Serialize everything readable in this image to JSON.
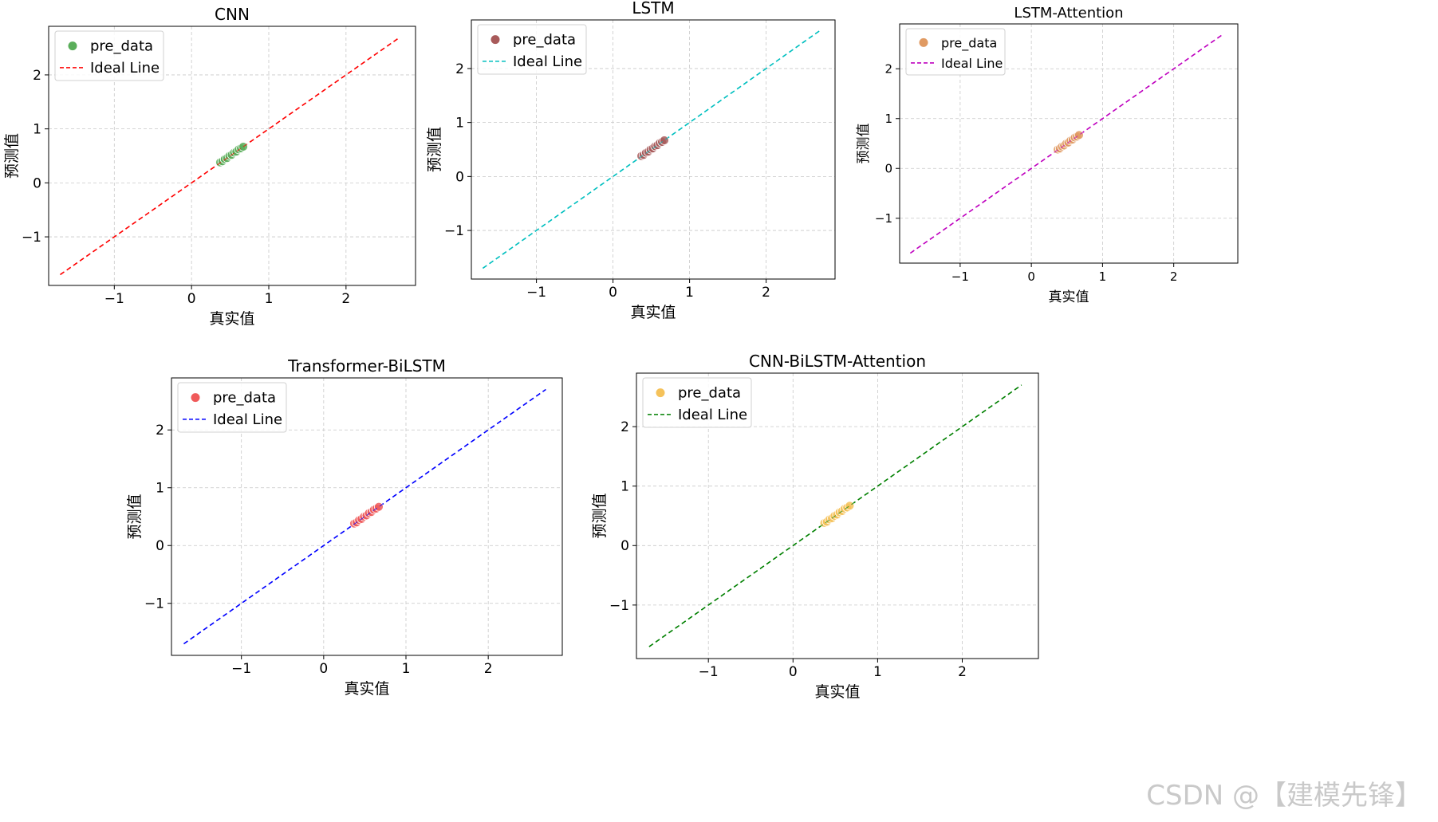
{
  "chart_data": [
    {
      "type": "scatter",
      "title": "CNN",
      "xlabel": "真实值",
      "ylabel": "预测值",
      "xlim": [
        -1.85,
        2.9
      ],
      "ylim": [
        -1.9,
        2.9
      ],
      "xticks": [
        -1,
        0,
        1,
        2
      ],
      "yticks": [
        -1,
        0,
        1,
        2
      ],
      "xtick_labels": [
        "−1",
        "0",
        "1",
        "2"
      ],
      "ytick_labels": [
        "−1",
        "0",
        "1",
        "2"
      ],
      "grid": true,
      "legend_position": "top-left",
      "series": [
        {
          "name": "pre_data",
          "kind": "scatter",
          "color": "#5aae5a",
          "points": [
            [
              0.37,
              0.38
            ],
            [
              0.4,
              0.4
            ],
            [
              0.43,
              0.44
            ],
            [
              0.46,
              0.46
            ],
            [
              0.49,
              0.5
            ],
            [
              0.52,
              0.52
            ],
            [
              0.55,
              0.56
            ],
            [
              0.58,
              0.58
            ],
            [
              0.61,
              0.62
            ],
            [
              0.64,
              0.64
            ],
            [
              0.67,
              0.67
            ]
          ]
        },
        {
          "name": "Ideal Line",
          "kind": "line",
          "style": "dashed",
          "color": "#ff0000",
          "x": [
            -1.7,
            2.7
          ],
          "y": [
            -1.7,
            2.7
          ]
        }
      ]
    },
    {
      "type": "scatter",
      "title": "LSTM",
      "xlabel": "真实值",
      "ylabel": "预测值",
      "xlim": [
        -1.85,
        2.9
      ],
      "ylim": [
        -1.9,
        2.9
      ],
      "xticks": [
        -1,
        0,
        1,
        2
      ],
      "yticks": [
        -1,
        0,
        1,
        2
      ],
      "xtick_labels": [
        "−1",
        "0",
        "1",
        "2"
      ],
      "ytick_labels": [
        "−1",
        "0",
        "1",
        "2"
      ],
      "grid": true,
      "legend_position": "top-left",
      "series": [
        {
          "name": "pre_data",
          "kind": "scatter",
          "color": "#a85a5a",
          "points": [
            [
              0.37,
              0.38
            ],
            [
              0.4,
              0.4
            ],
            [
              0.43,
              0.44
            ],
            [
              0.46,
              0.46
            ],
            [
              0.49,
              0.5
            ],
            [
              0.52,
              0.52
            ],
            [
              0.55,
              0.56
            ],
            [
              0.58,
              0.58
            ],
            [
              0.61,
              0.62
            ],
            [
              0.64,
              0.64
            ],
            [
              0.67,
              0.67
            ]
          ]
        },
        {
          "name": "Ideal Line",
          "kind": "line",
          "style": "dashed",
          "color": "#00bfbf",
          "x": [
            -1.7,
            2.7
          ],
          "y": [
            -1.7,
            2.7
          ]
        }
      ]
    },
    {
      "type": "scatter",
      "title": "LSTM-Attention",
      "xlabel": "真实值",
      "ylabel": "预测值",
      "xlim": [
        -1.85,
        2.9
      ],
      "ylim": [
        -1.9,
        2.9
      ],
      "xticks": [
        -1,
        0,
        1,
        2
      ],
      "yticks": [
        -1,
        0,
        1,
        2
      ],
      "xtick_labels": [
        "−1",
        "0",
        "1",
        "2"
      ],
      "ytick_labels": [
        "−1",
        "0",
        "1",
        "2"
      ],
      "grid": true,
      "legend_position": "top-left",
      "series": [
        {
          "name": "pre_data",
          "kind": "scatter",
          "color": "#e09a62",
          "points": [
            [
              0.37,
              0.38
            ],
            [
              0.4,
              0.4
            ],
            [
              0.43,
              0.44
            ],
            [
              0.46,
              0.46
            ],
            [
              0.49,
              0.5
            ],
            [
              0.52,
              0.52
            ],
            [
              0.55,
              0.56
            ],
            [
              0.58,
              0.58
            ],
            [
              0.61,
              0.62
            ],
            [
              0.64,
              0.64
            ],
            [
              0.67,
              0.67
            ]
          ]
        },
        {
          "name": "Ideal Line",
          "kind": "line",
          "style": "dashed",
          "color": "#bf00bf",
          "x": [
            -1.7,
            2.7
          ],
          "y": [
            -1.7,
            2.7
          ]
        }
      ]
    },
    {
      "type": "scatter",
      "title": "Transformer-BiLSTM",
      "xlabel": "真实值",
      "ylabel": "预测值",
      "xlim": [
        -1.85,
        2.9
      ],
      "ylim": [
        -1.9,
        2.9
      ],
      "xticks": [
        -1,
        0,
        1,
        2
      ],
      "yticks": [
        -1,
        0,
        1,
        2
      ],
      "xtick_labels": [
        "−1",
        "0",
        "1",
        "2"
      ],
      "ytick_labels": [
        "−1",
        "0",
        "1",
        "2"
      ],
      "grid": true,
      "legend_position": "top-left",
      "series": [
        {
          "name": "pre_data",
          "kind": "scatter",
          "color": "#f05a5a",
          "points": [
            [
              0.37,
              0.38
            ],
            [
              0.4,
              0.4
            ],
            [
              0.43,
              0.44
            ],
            [
              0.46,
              0.46
            ],
            [
              0.49,
              0.5
            ],
            [
              0.52,
              0.52
            ],
            [
              0.55,
              0.56
            ],
            [
              0.58,
              0.58
            ],
            [
              0.61,
              0.62
            ],
            [
              0.64,
              0.64
            ],
            [
              0.67,
              0.67
            ]
          ]
        },
        {
          "name": "Ideal Line",
          "kind": "line",
          "style": "dashed",
          "color": "#0000ff",
          "x": [
            -1.7,
            2.7
          ],
          "y": [
            -1.7,
            2.7
          ]
        }
      ]
    },
    {
      "type": "scatter",
      "title": "CNN-BiLSTM-Attention",
      "xlabel": "真实值",
      "ylabel": "预测值",
      "xlim": [
        -1.85,
        2.9
      ],
      "ylim": [
        -1.9,
        2.9
      ],
      "xticks": [
        -1,
        0,
        1,
        2
      ],
      "yticks": [
        -1,
        0,
        1,
        2
      ],
      "xtick_labels": [
        "−1",
        "0",
        "1",
        "2"
      ],
      "ytick_labels": [
        "−1",
        "0",
        "1",
        "2"
      ],
      "grid": true,
      "legend_position": "top-left",
      "series": [
        {
          "name": "pre_data",
          "kind": "scatter",
          "color": "#f5c25a",
          "points": [
            [
              0.37,
              0.38
            ],
            [
              0.4,
              0.4
            ],
            [
              0.43,
              0.44
            ],
            [
              0.46,
              0.46
            ],
            [
              0.49,
              0.5
            ],
            [
              0.52,
              0.52
            ],
            [
              0.55,
              0.56
            ],
            [
              0.58,
              0.58
            ],
            [
              0.61,
              0.62
            ],
            [
              0.64,
              0.64
            ],
            [
              0.67,
              0.67
            ]
          ]
        },
        {
          "name": "Ideal Line",
          "kind": "line",
          "style": "dashed",
          "color": "#008000",
          "x": [
            -1.7,
            2.7
          ],
          "y": [
            -1.7,
            2.7
          ]
        }
      ]
    }
  ],
  "watermark": "CSDN @【建模先锋】"
}
